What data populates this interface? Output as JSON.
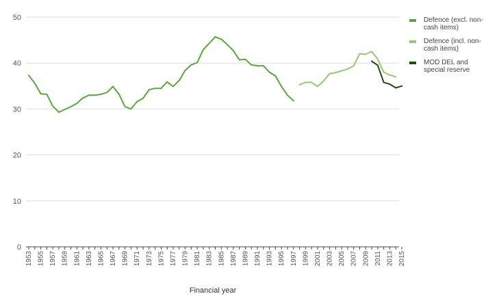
{
  "chart_data": {
    "type": "line",
    "xlabel": "Financial year",
    "ylabel": "",
    "ylim": [
      0,
      50
    ],
    "y_ticks": [
      "0",
      "10",
      "20",
      "30",
      "40",
      "50"
    ],
    "x_tick_labels": [
      "1953",
      "1955",
      "1957",
      "1959",
      "1961",
      "1963",
      "1965",
      "1967",
      "1969",
      "1971",
      "1973",
      "1975",
      "1977",
      "1979",
      "1981",
      "1983",
      "1985",
      "1987",
      "1989",
      "1991",
      "1993",
      "1995",
      "1997",
      "1999",
      "2001",
      "2003",
      "2005",
      "2007",
      "2009",
      "2011",
      "2013",
      "2015"
    ],
    "grid": "horizontal",
    "legend_position": "right",
    "series": [
      {
        "name": "Defence (excl. non-cash items)",
        "color": "#5ba63c",
        "x": [
          1953,
          1954,
          1955,
          1956,
          1957,
          1958,
          1959,
          1960,
          1961,
          1962,
          1963,
          1964,
          1965,
          1966,
          1967,
          1968,
          1969,
          1970,
          1971,
          1972,
          1973,
          1974,
          1975,
          1976,
          1977,
          1978,
          1979,
          1980,
          1981,
          1982,
          1983,
          1984,
          1985,
          1986,
          1987,
          1988,
          1989,
          1990,
          1991,
          1992,
          1993,
          1994,
          1995,
          1996,
          1997
        ],
        "values": [
          37.3,
          35.6,
          33.3,
          33.2,
          30.6,
          29.3,
          29.9,
          30.5,
          31.2,
          32.4,
          33.0,
          33.0,
          33.2,
          33.6,
          34.9,
          33.2,
          30.5,
          30.0,
          31.6,
          32.3,
          34.2,
          34.5,
          34.5,
          35.9,
          34.9,
          36.2,
          38.4,
          39.6,
          40.1,
          42.9,
          44.3,
          45.7,
          45.2,
          44.0,
          42.7,
          40.7,
          40.8,
          39.6,
          39.4,
          39.4,
          38.0,
          37.2,
          34.9,
          33.0,
          31.8
        ]
      },
      {
        "name": "Defence (incl. non-cash items)",
        "color": "#8fcc6d",
        "x": [
          1998,
          1999,
          2000,
          2001,
          2002,
          2003,
          2004,
          2005,
          2006,
          2007,
          2008,
          2009,
          2010,
          2011,
          2012,
          2013,
          2014
        ],
        "values": [
          35.3,
          35.8,
          35.8,
          34.9,
          36.1,
          37.7,
          37.9,
          38.3,
          38.7,
          39.4,
          42.0,
          41.9,
          42.5,
          40.9,
          38.0,
          37.4,
          37.0
        ]
      },
      {
        "name": "MOD DEL and special reserve",
        "color": "#1f4a14",
        "x": [
          2010,
          2011,
          2012,
          2013,
          2014,
          2015
        ],
        "values": [
          40.4,
          39.5,
          35.8,
          35.4,
          34.6,
          35.0
        ]
      }
    ]
  }
}
